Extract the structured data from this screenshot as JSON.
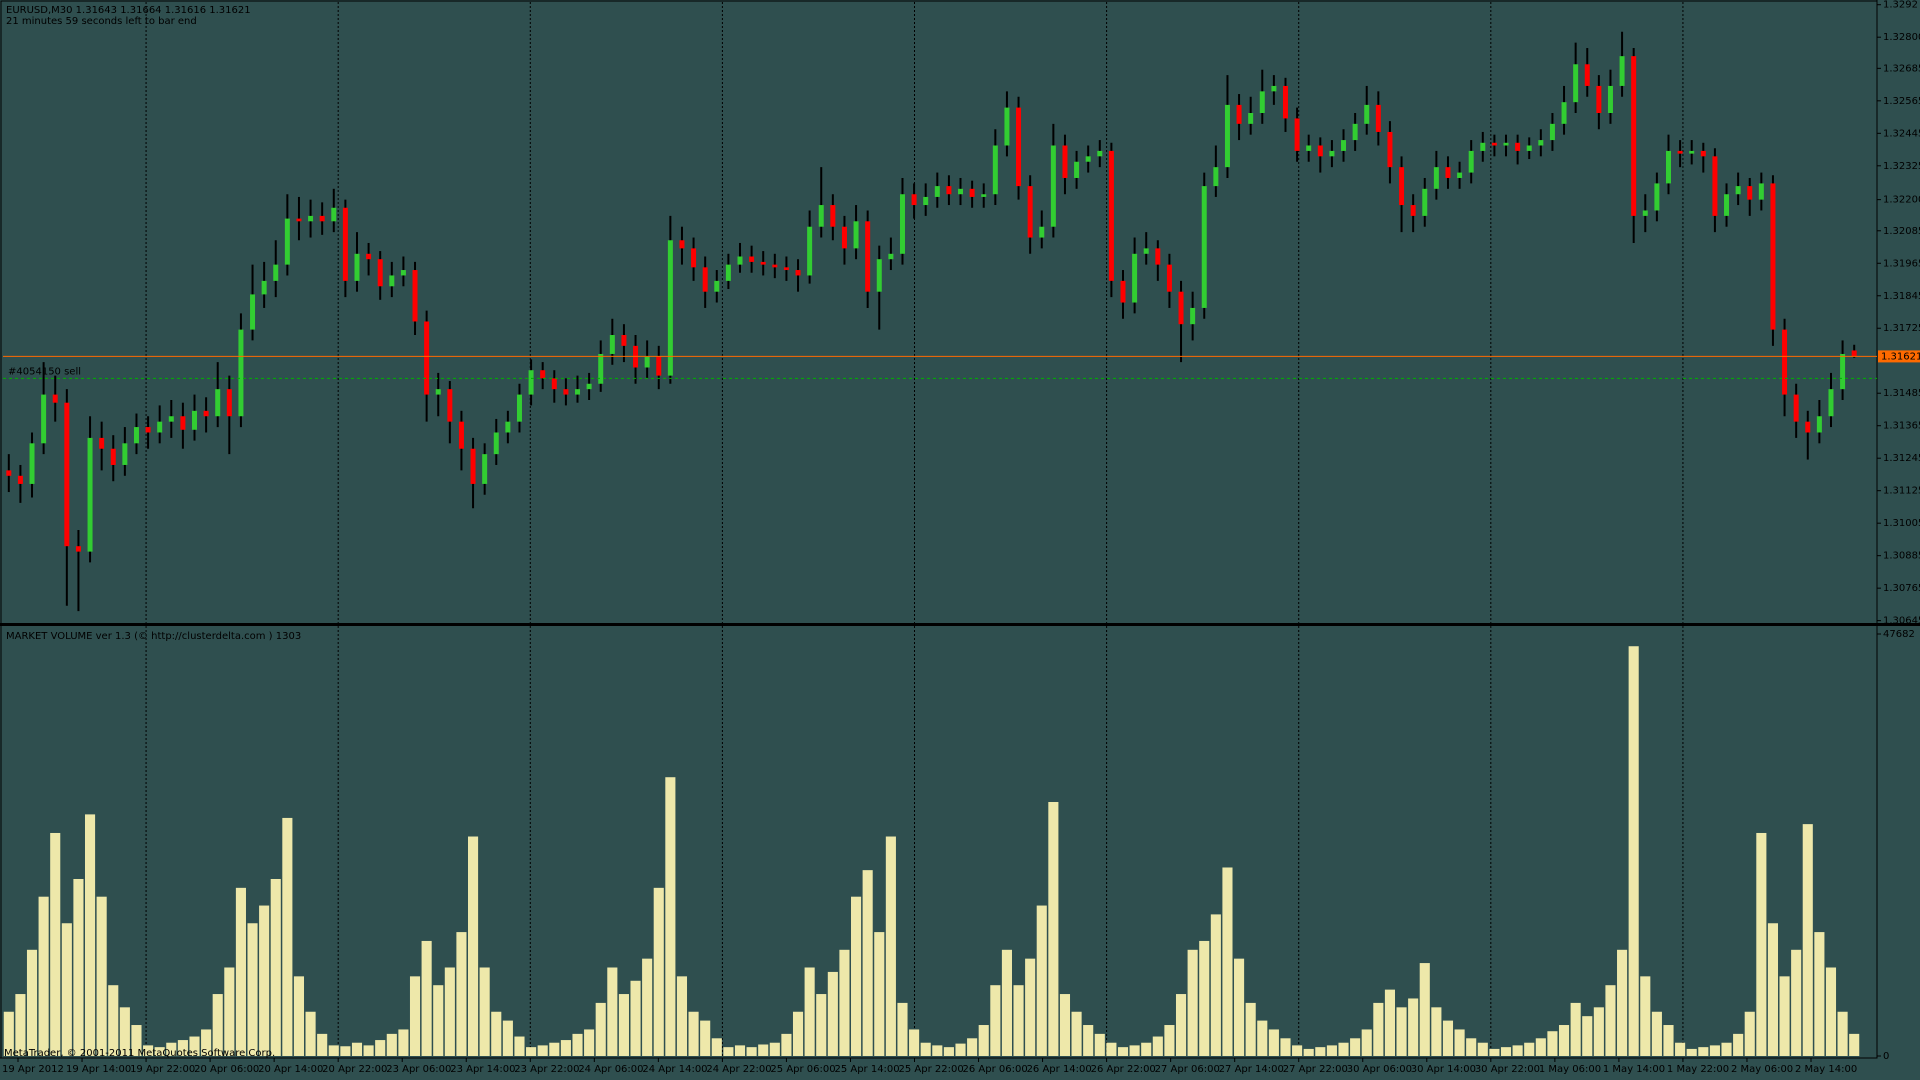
{
  "chart_data": [
    {
      "type": "candlestick",
      "header": "EURUSD,M30  1.31643 1.31664 1.31616 1.31621",
      "timer": "21 minutes 59 seconds left to bar end",
      "background": "#2f4f4f",
      "bull_color": "#32cd32",
      "bear_color": "#ff0000",
      "wick_color": "#000000",
      "open": [
        1.312,
        1.3118,
        1.3115,
        1.313,
        1.3148,
        1.3145,
        1.3092,
        1.309,
        1.3132,
        1.3128,
        1.3122,
        1.313,
        1.3136,
        1.3134,
        1.3138,
        1.314,
        1.3135,
        1.3142,
        1.314,
        1.315,
        1.314,
        1.3172,
        1.3185,
        1.319,
        1.3196,
        1.3213,
        1.3212,
        1.3214,
        1.3212,
        1.3217,
        1.319,
        1.32,
        1.3198,
        1.3188,
        1.3192,
        1.3194,
        1.3175,
        1.3148,
        1.315,
        1.3138,
        1.3128,
        1.3115,
        1.3126,
        1.3134,
        1.3138,
        1.3148,
        1.3157,
        1.3154,
        1.315,
        1.3148,
        1.315,
        1.3152,
        1.3163,
        1.317,
        1.3166,
        1.3158,
        1.3162,
        1.3155,
        1.3205,
        1.3202,
        1.3195,
        1.3186,
        1.319,
        1.3196,
        1.3199,
        1.3197,
        1.3196,
        1.3195,
        1.3194,
        1.3192,
        1.321,
        1.3218,
        1.321,
        1.3202,
        1.3212,
        1.3186,
        1.3198,
        1.32,
        1.3222,
        1.3218,
        1.3221,
        1.3225,
        1.3222,
        1.3224,
        1.3221,
        1.3222,
        1.324,
        1.3254,
        1.3225,
        1.3206,
        1.321,
        1.324,
        1.3228,
        1.3234,
        1.3236,
        1.3238,
        1.319,
        1.3182,
        1.32,
        1.3202,
        1.3196,
        1.3186,
        1.3174,
        1.318,
        1.3225,
        1.3232,
        1.3255,
        1.3248,
        1.3252,
        1.326,
        1.3262,
        1.325,
        1.3238,
        1.324,
        1.3236,
        1.3238,
        1.3242,
        1.3248,
        1.3255,
        1.3245,
        1.3232,
        1.3218,
        1.3214,
        1.3224,
        1.3232,
        1.3228,
        1.323,
        1.3238,
        1.3241,
        1.324,
        1.3241,
        1.3238,
        1.324,
        1.3242,
        1.3248,
        1.3256,
        1.327,
        1.3262,
        1.3252,
        1.3262,
        1.3273,
        1.3214,
        1.3216,
        1.3226,
        1.3238,
        1.3237,
        1.3238,
        1.3236,
        1.3214,
        1.3222,
        1.3225,
        1.322,
        1.3226,
        1.3172,
        1.3148,
        1.3138,
        1.3134,
        1.314,
        1.315,
        1.31643
      ],
      "high": [
        1.3126,
        1.3122,
        1.3134,
        1.316,
        1.3155,
        1.315,
        1.3098,
        1.314,
        1.3138,
        1.3133,
        1.3136,
        1.3141,
        1.314,
        1.3144,
        1.3146,
        1.3145,
        1.3148,
        1.3147,
        1.316,
        1.3155,
        1.3178,
        1.3196,
        1.3197,
        1.3205,
        1.3222,
        1.3221,
        1.322,
        1.3219,
        1.3224,
        1.322,
        1.3208,
        1.3204,
        1.3201,
        1.3197,
        1.3199,
        1.3197,
        1.3179,
        1.3156,
        1.3153,
        1.3142,
        1.3132,
        1.313,
        1.3139,
        1.3142,
        1.3152,
        1.3161,
        1.316,
        1.3157,
        1.3154,
        1.3155,
        1.3156,
        1.3168,
        1.3176,
        1.3174,
        1.317,
        1.3168,
        1.3166,
        1.3214,
        1.321,
        1.3206,
        1.3199,
        1.3194,
        1.32,
        1.3204,
        1.3203,
        1.3201,
        1.32,
        1.3199,
        1.3198,
        1.3216,
        1.3232,
        1.3222,
        1.3214,
        1.3218,
        1.3216,
        1.3203,
        1.3206,
        1.3228,
        1.3226,
        1.3226,
        1.323,
        1.3229,
        1.3228,
        1.3227,
        1.3226,
        1.3246,
        1.326,
        1.3258,
        1.3229,
        1.3216,
        1.3248,
        1.3244,
        1.3238,
        1.324,
        1.3242,
        1.3241,
        1.3194,
        1.3206,
        1.3208,
        1.3205,
        1.32,
        1.319,
        1.3186,
        1.323,
        1.324,
        1.3266,
        1.3259,
        1.3258,
        1.3268,
        1.3266,
        1.3265,
        1.3254,
        1.3244,
        1.3243,
        1.3242,
        1.3246,
        1.3252,
        1.3262,
        1.326,
        1.3249,
        1.3236,
        1.3222,
        1.3228,
        1.3238,
        1.3236,
        1.3234,
        1.3242,
        1.3245,
        1.3244,
        1.3244,
        1.3244,
        1.3243,
        1.3246,
        1.3252,
        1.3262,
        1.3278,
        1.3276,
        1.3266,
        1.3268,
        1.3282,
        1.3276,
        1.3222,
        1.323,
        1.3244,
        1.3242,
        1.3242,
        1.3241,
        1.3239,
        1.3226,
        1.323,
        1.3228,
        1.323,
        1.3229,
        1.3176,
        1.3152,
        1.3142,
        1.3146,
        1.3156,
        1.3168,
        1.31664
      ],
      "low": [
        1.3112,
        1.3108,
        1.311,
        1.3126,
        1.3138,
        1.307,
        1.3068,
        1.3086,
        1.312,
        1.3116,
        1.3118,
        1.3126,
        1.3128,
        1.313,
        1.3132,
        1.3128,
        1.3131,
        1.3134,
        1.3136,
        1.3126,
        1.3136,
        1.3168,
        1.318,
        1.3184,
        1.3192,
        1.3205,
        1.3206,
        1.3207,
        1.3208,
        1.3184,
        1.3186,
        1.3192,
        1.3183,
        1.3184,
        1.3188,
        1.317,
        1.3138,
        1.314,
        1.313,
        1.312,
        1.3106,
        1.3111,
        1.3122,
        1.313,
        1.3134,
        1.3144,
        1.315,
        1.3145,
        1.3144,
        1.3145,
        1.3146,
        1.3149,
        1.3159,
        1.316,
        1.3152,
        1.3154,
        1.315,
        1.3152,
        1.3196,
        1.319,
        1.318,
        1.3182,
        1.3187,
        1.3193,
        1.3193,
        1.3192,
        1.3191,
        1.319,
        1.3186,
        1.3189,
        1.3206,
        1.3205,
        1.3196,
        1.3198,
        1.318,
        1.3172,
        1.3194,
        1.3196,
        1.3213,
        1.3214,
        1.3217,
        1.3218,
        1.3218,
        1.3217,
        1.3217,
        1.3218,
        1.3236,
        1.322,
        1.32,
        1.3202,
        1.3206,
        1.3222,
        1.3224,
        1.323,
        1.3232,
        1.3184,
        1.3176,
        1.3178,
        1.3196,
        1.319,
        1.318,
        1.316,
        1.3168,
        1.3176,
        1.3221,
        1.3228,
        1.3242,
        1.3244,
        1.3248,
        1.3255,
        1.3245,
        1.3234,
        1.3234,
        1.323,
        1.3232,
        1.3234,
        1.3238,
        1.3244,
        1.324,
        1.3226,
        1.3208,
        1.3208,
        1.321,
        1.322,
        1.3224,
        1.3224,
        1.3226,
        1.3234,
        1.3236,
        1.3236,
        1.3233,
        1.3235,
        1.3236,
        1.3238,
        1.3244,
        1.3252,
        1.3258,
        1.3246,
        1.3248,
        1.3258,
        1.3204,
        1.3208,
        1.3212,
        1.3222,
        1.3232,
        1.3233,
        1.323,
        1.3208,
        1.321,
        1.3218,
        1.3214,
        1.3216,
        1.3166,
        1.314,
        1.3132,
        1.3124,
        1.313,
        1.3136,
        1.3146,
        1.31616
      ],
      "close": [
        1.3118,
        1.3115,
        1.313,
        1.3148,
        1.3145,
        1.3092,
        1.309,
        1.3132,
        1.3128,
        1.3122,
        1.313,
        1.3136,
        1.3134,
        1.3138,
        1.314,
        1.3135,
        1.3142,
        1.314,
        1.315,
        1.314,
        1.3172,
        1.3185,
        1.319,
        1.3196,
        1.3213,
        1.3212,
        1.3214,
        1.3212,
        1.3217,
        1.319,
        1.32,
        1.3198,
        1.3188,
        1.3192,
        1.3194,
        1.3175,
        1.3148,
        1.315,
        1.3138,
        1.3128,
        1.3115,
        1.3126,
        1.3134,
        1.3138,
        1.3148,
        1.3157,
        1.3154,
        1.315,
        1.3148,
        1.315,
        1.3152,
        1.3163,
        1.317,
        1.3166,
        1.3158,
        1.3162,
        1.3155,
        1.3205,
        1.3202,
        1.3195,
        1.3186,
        1.319,
        1.3196,
        1.3199,
        1.3197,
        1.3196,
        1.3195,
        1.3194,
        1.3192,
        1.321,
        1.3218,
        1.321,
        1.3202,
        1.3212,
        1.3186,
        1.3198,
        1.32,
        1.3222,
        1.3218,
        1.3221,
        1.3225,
        1.3222,
        1.3224,
        1.3221,
        1.3222,
        1.324,
        1.3254,
        1.3225,
        1.3206,
        1.321,
        1.324,
        1.3228,
        1.3234,
        1.3236,
        1.3238,
        1.319,
        1.3182,
        1.32,
        1.3202,
        1.3196,
        1.3186,
        1.3174,
        1.318,
        1.3225,
        1.3232,
        1.3255,
        1.3248,
        1.3252,
        1.326,
        1.3262,
        1.325,
        1.3238,
        1.324,
        1.3236,
        1.3238,
        1.3242,
        1.3248,
        1.3255,
        1.3245,
        1.3232,
        1.3218,
        1.3214,
        1.3224,
        1.3232,
        1.3228,
        1.323,
        1.3238,
        1.3241,
        1.324,
        1.3241,
        1.3238,
        1.324,
        1.3242,
        1.3248,
        1.3256,
        1.327,
        1.3262,
        1.3252,
        1.3262,
        1.3273,
        1.3214,
        1.3216,
        1.3226,
        1.3238,
        1.3237,
        1.3238,
        1.3236,
        1.3214,
        1.3222,
        1.3225,
        1.322,
        1.3226,
        1.3172,
        1.3148,
        1.3138,
        1.3134,
        1.314,
        1.315,
        1.3163,
        1.31621
      ],
      "ylim": [
        1.3064,
        1.3293
      ],
      "yticks": [
        {
          "value": 1.3292,
          "label": "1.3292"
        },
        {
          "value": 1.328,
          "label": "1.32800"
        },
        {
          "value": 1.32685,
          "label": "1.32685"
        },
        {
          "value": 1.32565,
          "label": "1.32565"
        },
        {
          "value": 1.32445,
          "label": "1.32445"
        },
        {
          "value": 1.32325,
          "label": "1.32325"
        },
        {
          "value": 1.322,
          "label": "1.32200"
        },
        {
          "value": 1.32085,
          "label": "1.32085"
        },
        {
          "value": 1.31965,
          "label": "1.31965"
        },
        {
          "value": 1.31845,
          "label": "1.31845"
        },
        {
          "value": 1.31725,
          "label": "1.31725"
        },
        {
          "value": 1.31485,
          "label": "1.31485"
        },
        {
          "value": 1.31365,
          "label": "1.31365"
        },
        {
          "value": 1.31245,
          "label": "1.31245"
        },
        {
          "value": 1.31125,
          "label": "1.31125"
        },
        {
          "value": 1.31005,
          "label": "1.31005"
        },
        {
          "value": 1.30885,
          "label": "1.30885"
        },
        {
          "value": 1.30765,
          "label": "1.30765"
        },
        {
          "value": 1.30645,
          "label": "1.30645"
        }
      ],
      "current_price": {
        "value": 1.31621,
        "label": "1.31621",
        "color": "#ff6a00"
      },
      "order_line": {
        "value": 1.3154,
        "label": "#4054150 sell",
        "color": "#00b000"
      }
    },
    {
      "type": "bar",
      "title": "MARKET VOLUME ver 1.3 (© http://clusterdelta.com ) 1303",
      "color": "#eee8aa",
      "values": [
        5000,
        7000,
        12000,
        18000,
        25200,
        15000,
        20000,
        27300,
        18000,
        8000,
        5500,
        3500,
        1200,
        1000,
        1500,
        1800,
        2200,
        3000,
        7000,
        10000,
        19000,
        15000,
        17000,
        20000,
        26900,
        9000,
        5000,
        2500,
        1200,
        1100,
        1500,
        1200,
        1800,
        2500,
        3000,
        9000,
        13000,
        8000,
        10000,
        14000,
        24800,
        10000,
        5000,
        4000,
        2200,
        1000,
        1200,
        1500,
        1800,
        2500,
        3000,
        6000,
        10000,
        7000,
        8500,
        11000,
        19000,
        31500,
        9000,
        5000,
        4000,
        2000,
        1000,
        1200,
        1000,
        1300,
        1500,
        2500,
        5000,
        10000,
        7000,
        9500,
        12000,
        18000,
        21000,
        14000,
        24800,
        6000,
        3000,
        1500,
        1200,
        1000,
        1400,
        2000,
        3500,
        8000,
        12000,
        8000,
        11000,
        17000,
        28700,
        7000,
        5000,
        3500,
        2500,
        1500,
        1000,
        1200,
        1500,
        2200,
        3500,
        7000,
        12000,
        13000,
        16000,
        21300,
        11000,
        6000,
        4000,
        3000,
        2000,
        1200,
        800,
        1000,
        1200,
        1500,
        2000,
        3000,
        6000,
        7500,
        5500,
        6500,
        10500,
        5500,
        4000,
        3000,
        2000,
        1500,
        800,
        1000,
        1200,
        1500,
        2000,
        2800,
        3500,
        6000,
        4500,
        5500,
        8000,
        12000,
        46300,
        9000,
        5000,
        3500,
        1500,
        800,
        1000,
        1200,
        1500,
        2500,
        5000,
        25200,
        15000,
        9000,
        12000,
        26200,
        14000,
        10000,
        5000,
        2500
      ],
      "ylim": [
        0,
        47682
      ],
      "yticks": [
        0,
        47682
      ],
      "time_labels": [
        "19 Apr 2012",
        "19 Apr 14:00",
        "19 Apr 22:00",
        "20 Apr 06:00",
        "20 Apr 14:00",
        "20 Apr 22:00",
        "23 Apr 06:00",
        "23 Apr 14:00",
        "23 Apr 22:00",
        "24 Apr 06:00",
        "24 Apr 14:00",
        "24 Apr 22:00",
        "25 Apr 06:00",
        "25 Apr 14:00",
        "25 Apr 22:00",
        "26 Apr 06:00",
        "26 Apr 14:00",
        "26 Apr 22:00",
        "27 Apr 06:00",
        "27 Apr 14:00",
        "27 Apr 22:00",
        "30 Apr 06:00",
        "30 Apr 14:00",
        "30 Apr 22:00",
        "1 May 06:00",
        "1 May 14:00",
        "1 May 22:00",
        "2 May 06:00",
        "2 May 14:00"
      ],
      "footer": "MetaTrader, © 2001-2011 MetaQuotes Software Corp."
    }
  ]
}
